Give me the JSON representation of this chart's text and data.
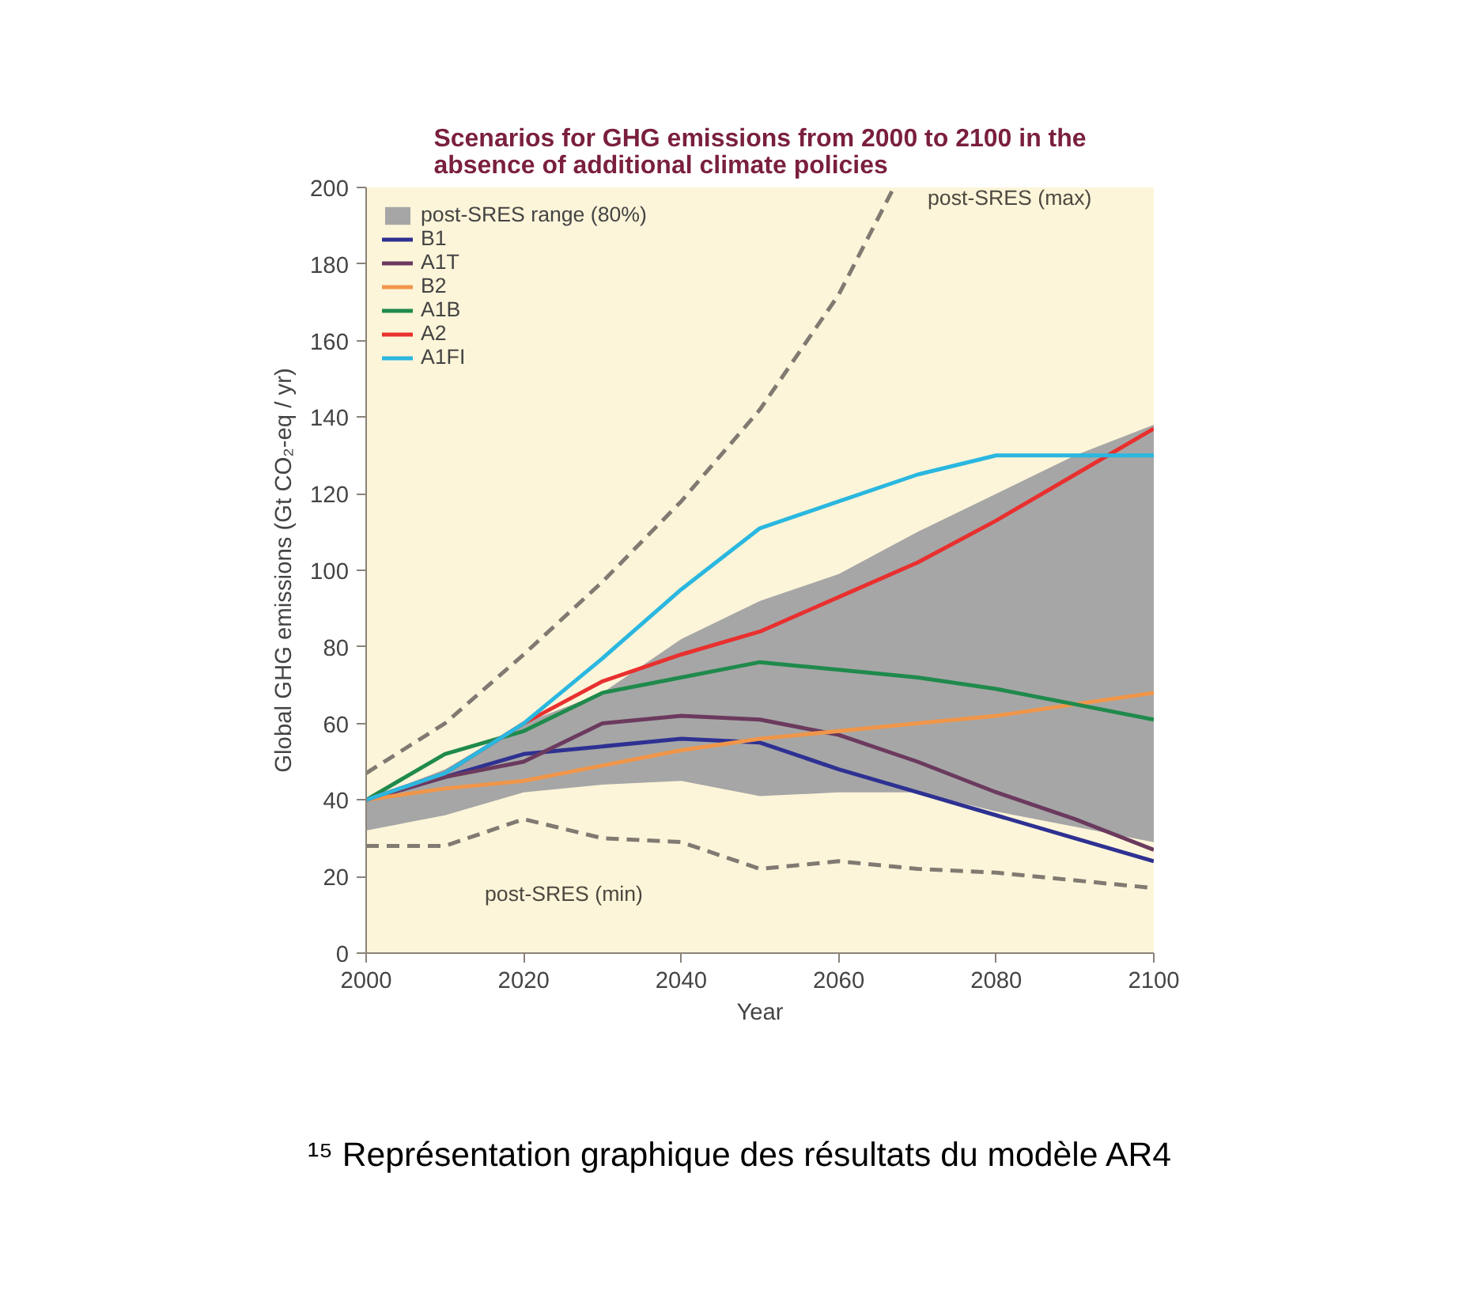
{
  "chart_data": {
    "type": "line",
    "title": "Scenarios for GHG emissions from 2000 to 2100 in the\nabsence of additional climate policies",
    "xlabel": "Year",
    "ylabel": "Global GHG emissions (Gt CO₂-eq / yr)",
    "x": [
      2000,
      2010,
      2020,
      2030,
      2040,
      2050,
      2060,
      2070,
      2080,
      2090,
      2100
    ],
    "xlim": [
      2000,
      2100
    ],
    "xticks": [
      2000,
      2020,
      2040,
      2060,
      2080,
      2100
    ],
    "ylim": [
      0,
      200
    ],
    "yticks": [
      0,
      20,
      40,
      60,
      80,
      100,
      120,
      140,
      160,
      180,
      200
    ],
    "grid": false,
    "legend": "top left",
    "line_style": "solid",
    "marker": "none",
    "series": [
      {
        "name": "post-SRES range (80%)",
        "color": "#a6a6a6",
        "values": [
          null,
          null,
          null,
          null,
          null,
          null,
          null,
          null,
          null,
          null,
          null
        ],
        "lower": [
          32,
          36,
          42,
          44,
          45,
          41,
          42,
          42,
          37,
          33,
          29
        ],
        "upper": [
          40,
          48,
          60,
          68,
          82,
          92,
          99,
          110,
          120,
          130,
          138
        ]
      },
      {
        "name": "B1",
        "color": "#2e3192",
        "values": [
          40,
          46,
          52,
          54,
          56,
          55,
          48,
          42,
          36,
          30,
          24
        ]
      },
      {
        "name": "A1T",
        "color": "#6b3a5e",
        "values": [
          40,
          46,
          50,
          60,
          62,
          61,
          57,
          50,
          42,
          35,
          27
        ]
      },
      {
        "name": "B2",
        "color": "#f0964a",
        "values": [
          40,
          43,
          45,
          49,
          53,
          56,
          58,
          60,
          62,
          65,
          68
        ]
      },
      {
        "name": "A1B",
        "color": "#1f8a4c",
        "values": [
          40,
          52,
          58,
          68,
          72,
          76,
          74,
          72,
          69,
          65,
          61
        ]
      },
      {
        "name": "A2",
        "color": "#e8302f",
        "values": [
          40,
          47,
          60,
          71,
          78,
          84,
          93,
          102,
          113,
          125,
          137
        ]
      },
      {
        "name": "A1FI",
        "color": "#2ab7e0",
        "values": [
          40,
          47,
          60,
          77,
          95,
          111,
          118,
          125,
          130,
          130,
          130
        ]
      },
      {
        "type": "line",
        "line_style": "dashed",
        "color": "#807a72",
        "x": [
          2000,
          2010,
          2020,
          2030,
          2040,
          2050,
          2060,
          2067
        ],
        "values": [
          47,
          60,
          78,
          97,
          118,
          142,
          172,
          200
        ]
      },
      {
        "type": "line",
        "line_style": "dashed",
        "color": "#807a72",
        "values": [
          28,
          28,
          35,
          30,
          29,
          22,
          24,
          22,
          21,
          19,
          17
        ]
      }
    ],
    "annotations": [
      "post-SRES (max)",
      "post-SRES (min)",
      "¹⁵ Représentation graphique des résultats du modèle AR4"
    ]
  }
}
